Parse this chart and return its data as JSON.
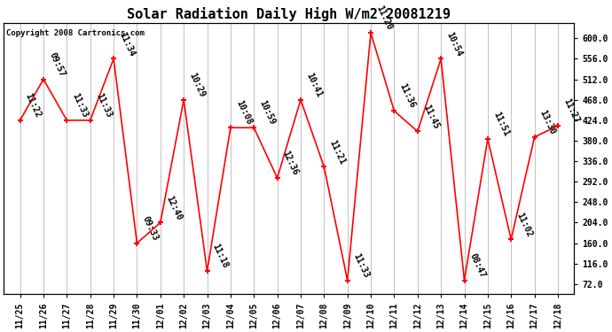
{
  "title": "Solar Radiation Daily High W/m2 20081219",
  "copyright": "Copyright 2008 Cartronics.com",
  "x_labels": [
    "11/25",
    "11/26",
    "11/27",
    "11/28",
    "11/29",
    "11/30",
    "12/01",
    "12/02",
    "12/03",
    "12/04",
    "12/05",
    "12/06",
    "12/07",
    "12/08",
    "12/09",
    "12/10",
    "12/11",
    "12/12",
    "12/13",
    "12/14",
    "12/15",
    "12/16",
    "12/17",
    "12/18"
  ],
  "y_values": [
    424,
    512,
    424,
    424,
    556,
    160,
    204,
    468,
    100,
    408,
    408,
    300,
    468,
    324,
    80,
    612,
    444,
    400,
    556,
    80,
    384,
    168,
    388,
    412
  ],
  "point_labels": [
    "11:22",
    "09:57",
    "11:33",
    "11:33",
    "11:34",
    "09:33",
    "12:40",
    "10:29",
    "11:18",
    "10:08",
    "10:59",
    "12:36",
    "10:41",
    "11:21",
    "11:33",
    "11:20",
    "11:36",
    "11:45",
    "10:54",
    "08:47",
    "11:51",
    "11:02",
    "13:30",
    "11:27"
  ],
  "line_color": "#FF0000",
  "marker_color": "#FF0000",
  "bg_color": "#FFFFFF",
  "grid_color": "#AAAAAA",
  "title_fontsize": 11,
  "tick_label_fontsize": 7,
  "point_label_fontsize": 7,
  "ylim": [
    50,
    632
  ],
  "yticks": [
    72.0,
    116.0,
    160.0,
    204.0,
    248.0,
    292.0,
    336.0,
    380.0,
    424.0,
    468.0,
    512.0,
    556.0,
    600.0
  ]
}
